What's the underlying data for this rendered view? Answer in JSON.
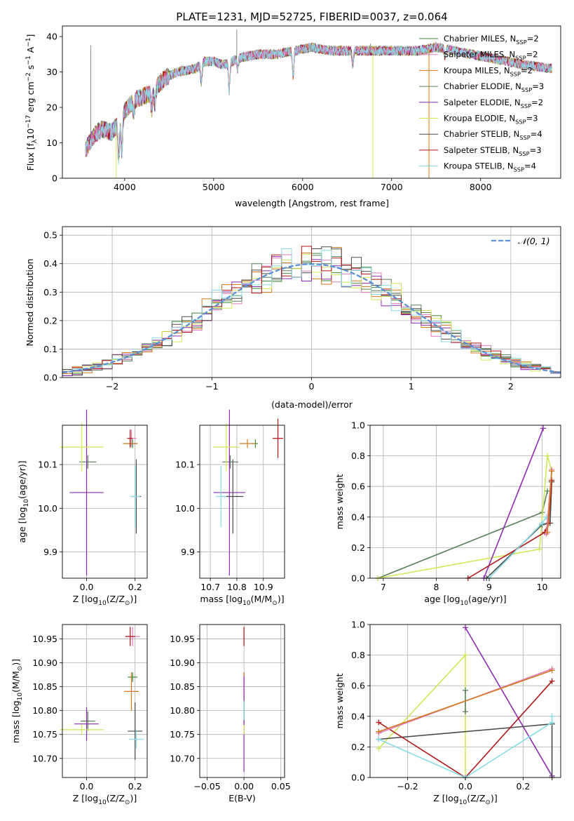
{
  "figure": {
    "title": "PLATE=1231, MJD=52725, FIBERID=0037, z=0.064"
  },
  "models": [
    {
      "name": "Chabrier MILES, N",
      "sub": "SSP",
      "tail": "=2",
      "color": "#3a8a3a"
    },
    {
      "name": "Salpeter MILES, N",
      "sub": "SSP",
      "tail": "=2",
      "color": "#e27cc0"
    },
    {
      "name": "Kroupa MILES, N",
      "sub": "SSP",
      "tail": "=2",
      "color": "#d2791e"
    },
    {
      "name": "Chabrier ELODIE, N",
      "sub": "SSP",
      "tail": "=3",
      "color": "#5a7f5a"
    },
    {
      "name": "Salpeter ELODIE, N",
      "sub": "SSP",
      "tail": "=2",
      "color": "#8e2bb0"
    },
    {
      "name": "Kroupa ELODIE, N",
      "sub": "SSP",
      "tail": "=3",
      "color": "#cfe85a"
    },
    {
      "name": "Chabrier STELIB, N",
      "sub": "SSP",
      "tail": "=4",
      "color": "#4a4a4a"
    },
    {
      "name": "Salpeter STELIB, N",
      "sub": "SSP",
      "tail": "=3",
      "color": "#b01515"
    },
    {
      "name": "Kroupa STELIB, N",
      "sub": "SSP",
      "tail": "=4",
      "color": "#88dce6"
    }
  ],
  "chart_data": [
    {
      "id": "spectrum",
      "type": "line",
      "xlabel": "wavelength [Angstrom, rest frame]",
      "ylabel": "Flux [f",
      "ylabel_sub": "λ",
      "ylabel_mid": "10",
      "ylabel_sup1": "−17",
      "ylabel_mid2": " erg cm",
      "ylabel_sup2": "−2",
      "ylabel_mid3": " s",
      "ylabel_sup3": "−1",
      "ylabel_mid4": " A",
      "ylabel_sup4": "−1",
      "ylabel_end": "]",
      "xlim": [
        3300,
        8900
      ],
      "ylim": [
        0,
        43
      ],
      "xticks": [
        "4000",
        "5000",
        "6000",
        "7000",
        "8000"
      ],
      "xtick_values": [
        4000,
        5000,
        6000,
        7000,
        8000
      ],
      "yticks": [
        "0",
        "10",
        "20",
        "30",
        "40"
      ],
      "ytick_values": [
        0,
        10,
        20,
        30,
        40
      ],
      "continuum": [
        [
          3560,
          8
        ],
        [
          3650,
          12
        ],
        [
          3750,
          14
        ],
        [
          3850,
          13
        ],
        [
          3950,
          16
        ],
        [
          4000,
          19
        ],
        [
          4100,
          22
        ],
        [
          4200,
          23
        ],
        [
          4300,
          24
        ],
        [
          4400,
          27
        ],
        [
          4500,
          29
        ],
        [
          4600,
          30
        ],
        [
          4800,
          31
        ],
        [
          4900,
          33
        ],
        [
          5000,
          33
        ],
        [
          5100,
          32
        ],
        [
          5200,
          33
        ],
        [
          5300,
          34
        ],
        [
          5500,
          35
        ],
        [
          5700,
          35
        ],
        [
          5900,
          36
        ],
        [
          6100,
          37
        ],
        [
          6300,
          36
        ],
        [
          6500,
          36
        ],
        [
          6700,
          36
        ],
        [
          6900,
          36
        ],
        [
          7100,
          36
        ],
        [
          7300,
          36
        ],
        [
          7500,
          37
        ],
        [
          7700,
          36
        ],
        [
          7900,
          35
        ],
        [
          8100,
          34
        ],
        [
          8300,
          33
        ],
        [
          8500,
          32
        ],
        [
          8800,
          31
        ]
      ],
      "absorption_lines": [
        [
          3934,
          10
        ],
        [
          3968,
          9
        ],
        [
          4101,
          4
        ],
        [
          4304,
          5
        ],
        [
          4340,
          4
        ],
        [
          4861,
          5
        ],
        [
          5175,
          8
        ],
        [
          5270,
          3
        ],
        [
          5893,
          7
        ],
        [
          6563,
          4
        ],
        [
          7600,
          2
        ]
      ],
      "spikes_up": [
        [
          3620,
          37.5
        ],
        [
          5260,
          42
        ],
        [
          6760,
          38
        ]
      ],
      "spikes_down": [
        [
          3905,
          0
        ],
        [
          6790,
          0
        ],
        [
          7420,
          0
        ]
      ]
    },
    {
      "id": "residuals",
      "type": "histogram",
      "xlabel": "(data-model)/error",
      "ylabel": "Normed distribution",
      "xlim": [
        -2.5,
        2.5
      ],
      "ylim": [
        0,
        0.53
      ],
      "xticks": [
        "−2",
        "−1",
        "0",
        "1",
        "2"
      ],
      "xtick_values": [
        -2,
        -1,
        0,
        1,
        2
      ],
      "yticks": [
        "0.0",
        "0.1",
        "0.2",
        "0.3",
        "0.4",
        "0.5"
      ],
      "ytick_values": [
        0,
        0.1,
        0.2,
        0.3,
        0.4,
        0.5
      ],
      "legend": "𝒩(0, 1)",
      "legend_color": "#5b8fd6",
      "bin_width": 0.1,
      "bin_start": -2.5
    },
    {
      "id": "age-vs-Z",
      "type": "scatter",
      "xlabel": "Z [log",
      "xlabel_sub": "10",
      "xlabel_rest": "(Z/Z",
      "xlabel_sub2": "⊙",
      "xlabel_end": ")]",
      "ylabel": "age  [log",
      "ylabel_sub": "10",
      "ylabel_rest": "(age/yr)]",
      "xlim": [
        -0.1,
        0.25
      ],
      "ylim": [
        9.84,
        10.19
      ],
      "xticks": [
        "0.0",
        "0.2"
      ],
      "xtick_values": [
        0,
        0.2
      ],
      "yticks": [
        "9.9",
        "10.0",
        "10.1"
      ],
      "ytick_values": [
        9.9,
        10.0,
        10.1
      ],
      "points": [
        {
          "m": 0,
          "x": 0.19,
          "y": 10.148,
          "xe": 0.02,
          "ye": 0.01
        },
        {
          "m": 1,
          "x": 0.185,
          "y": 10.16,
          "xe": 0.02,
          "ye": 0.02
        },
        {
          "m": 2,
          "x": 0.18,
          "y": 10.148,
          "xe": 0.03,
          "ye": 0.01
        },
        {
          "m": 3,
          "x": 0.005,
          "y": 10.106,
          "xe": 0.035,
          "ye": 0.015
        },
        {
          "m": 4,
          "x": 0.0,
          "y": 10.036,
          "xe": 0.07,
          "ye": 0.19
        },
        {
          "m": 5,
          "x": -0.02,
          "y": 10.14,
          "xe": 0.09,
          "ye": 0.055
        },
        {
          "m": 6,
          "x": 0.205,
          "y": 10.027,
          "xe": 0.02,
          "ye": 0.085
        },
        {
          "m": 7,
          "x": 0.18,
          "y": 10.16,
          "xe": 0.01,
          "ye": 0.02
        },
        {
          "m": 8,
          "x": 0.2,
          "y": 10.027,
          "xe": 0.02,
          "ye": 0.07
        }
      ]
    },
    {
      "id": "age-vs-mass",
      "type": "scatter",
      "xlabel": "mass [log",
      "xlabel_sub": "10",
      "xlabel_rest": "(M/M",
      "xlabel_sub2": "⊙",
      "xlabel_end": ")]",
      "xlim": [
        10.66,
        10.98
      ],
      "ylim": [
        9.84,
        10.19
      ],
      "xticks": [
        "10.7",
        "10.8",
        "10.9"
      ],
      "xtick_values": [
        10.7,
        10.8,
        10.9
      ],
      "yticks": [
        "9.9",
        "10.0",
        "10.1"
      ],
      "ytick_values": [
        9.9,
        10.0,
        10.1
      ],
      "points": [
        {
          "m": 0,
          "x": 10.87,
          "y": 10.148,
          "xe": 0.01,
          "ye": 0.01
        },
        {
          "m": 1,
          "x": 10.955,
          "y": 10.16,
          "xe": 0.01,
          "ye": 0.02
        },
        {
          "m": 2,
          "x": 10.84,
          "y": 10.148,
          "xe": 0.03,
          "ye": 0.01
        },
        {
          "m": 3,
          "x": 10.775,
          "y": 10.106,
          "xe": 0.03,
          "ye": 0.015
        },
        {
          "m": 4,
          "x": 10.772,
          "y": 10.036,
          "xe": 0.06,
          "ye": 0.19
        },
        {
          "m": 5,
          "x": 10.76,
          "y": 10.14,
          "xe": 0.05,
          "ye": 0.055
        },
        {
          "m": 6,
          "x": 10.785,
          "y": 10.027,
          "xe": 0.04,
          "ye": 0.085
        },
        {
          "m": 7,
          "x": 10.955,
          "y": 10.16,
          "xe": 0.02,
          "ye": 0.045
        },
        {
          "m": 8,
          "x": 10.74,
          "y": 10.027,
          "xe": 0.02,
          "ye": 0.07
        }
      ]
    },
    {
      "id": "weight-vs-age",
      "type": "line",
      "xlabel": "age  [log",
      "xlabel_sub": "10",
      "xlabel_rest": "(age/yr)]",
      "ylabel": "mass weight",
      "xlim": [
        6.75,
        10.35
      ],
      "ylim": [
        0,
        1.0
      ],
      "xticks": [
        "7",
        "8",
        "9",
        "10"
      ],
      "xtick_values": [
        7,
        8,
        9,
        10
      ],
      "yticks": [
        "0.0",
        "0.2",
        "0.4",
        "0.6",
        "0.8",
        "1.0"
      ],
      "ytick_values": [
        0,
        0.2,
        0.4,
        0.6,
        0.8,
        1.0
      ],
      "series": [
        {
          "m": 3,
          "x": [
            6.9,
            10.0,
            10.1
          ],
          "y": [
            0.0,
            0.43,
            0.57
          ]
        },
        {
          "m": 5,
          "x": [
            6.9,
            9.95,
            10.1,
            10.18
          ],
          "y": [
            0.0,
            0.19,
            0.8,
            0.7
          ]
        },
        {
          "m": 4,
          "x": [
            8.9,
            10.02
          ],
          "y": [
            0.0,
            0.98
          ]
        },
        {
          "m": 6,
          "x": [
            8.95,
            10.0,
            10.15,
            10.18
          ],
          "y": [
            0.0,
            0.35,
            0.36,
            0.63
          ]
        },
        {
          "m": 7,
          "x": [
            8.6,
            10.05,
            10.12,
            10.18
          ],
          "y": [
            0.0,
            0.3,
            0.36,
            0.64
          ]
        },
        {
          "m": 8,
          "x": [
            9.0,
            10.0,
            10.08
          ],
          "y": [
            0.0,
            0.36,
            0.4
          ]
        },
        {
          "m": 1,
          "x": [
            10.08,
            10.18
          ],
          "y": [
            0.29,
            0.71
          ]
        },
        {
          "m": 2,
          "x": [
            10.1,
            10.18
          ],
          "y": [
            0.3,
            0.7
          ]
        }
      ]
    },
    {
      "id": "mass-vs-Z",
      "type": "scatter",
      "xlabel": "Z [log",
      "xlabel_sub": "10",
      "xlabel_rest": "(Z/Z",
      "xlabel_sub2": "⊙",
      "xlabel_end": ")]",
      "ylabel": "mass [log",
      "ylabel_sub": "10",
      "ylabel_rest": "(M/M",
      "ylabel_sub2": "⊙",
      "ylabel_end": ")]",
      "xlim": [
        -0.1,
        0.25
      ],
      "ylim": [
        10.66,
        10.98
      ],
      "xticks": [
        "0.0",
        "0.2"
      ],
      "xtick_values": [
        0,
        0.2
      ],
      "yticks": [
        "10.70",
        "10.75",
        "10.80",
        "10.85",
        "10.90",
        "10.95"
      ],
      "ytick_values": [
        10.7,
        10.75,
        10.8,
        10.85,
        10.9,
        10.95
      ],
      "points": [
        {
          "m": 0,
          "x": 0.19,
          "y": 10.87,
          "xe": 0.02,
          "ye": 0.01
        },
        {
          "m": 1,
          "x": 0.19,
          "y": 10.955,
          "xe": 0.03,
          "ye": 0.02
        },
        {
          "m": 2,
          "x": 0.185,
          "y": 10.84,
          "xe": 0.03,
          "ye": 0.04
        },
        {
          "m": 3,
          "x": 0.005,
          "y": 10.778,
          "xe": 0.03,
          "ye": 0.02
        },
        {
          "m": 4,
          "x": 0.0,
          "y": 10.772,
          "xe": 0.05,
          "ye": 0.035
        },
        {
          "m": 5,
          "x": -0.02,
          "y": 10.76,
          "xe": 0.09,
          "ye": 0.01
        },
        {
          "m": 6,
          "x": 0.2,
          "y": 10.757,
          "xe": 0.03,
          "ye": 0.06
        },
        {
          "m": 7,
          "x": 0.18,
          "y": 10.955,
          "xe": 0.02,
          "ye": 0.02
        },
        {
          "m": 8,
          "x": 0.205,
          "y": 10.74,
          "xe": 0.03,
          "ye": 0.02
        }
      ]
    },
    {
      "id": "mass-vs-ebv",
      "type": "scatter",
      "xlabel": "E(B-V)",
      "xlim": [
        -0.06,
        0.055
      ],
      "ylim": [
        10.66,
        10.98
      ],
      "xticks": [
        "−0.05",
        "0.00",
        "0.05"
      ],
      "xtick_values": [
        -0.05,
        0,
        0.05
      ],
      "yticks": [
        "10.70",
        "10.75",
        "10.80",
        "10.85",
        "10.90",
        "10.95"
      ],
      "ytick_values": [
        10.7,
        10.75,
        10.8,
        10.85,
        10.9,
        10.95
      ],
      "points": [
        {
          "m": 0,
          "x": 0.0,
          "y": 10.87,
          "xe": 0.0,
          "ye": 0.01
        },
        {
          "m": 1,
          "x": 0.0,
          "y": 10.955,
          "xe": 0.0,
          "ye": 0.02
        },
        {
          "m": 2,
          "x": 0.0,
          "y": 10.84,
          "xe": 0.0,
          "ye": 0.04
        },
        {
          "m": 3,
          "x": 0.0,
          "y": 10.778,
          "xe": 0.0,
          "ye": 0.02
        },
        {
          "m": 4,
          "x": 0.0,
          "y": 10.772,
          "xe": 0.0,
          "ye": 0.1
        },
        {
          "m": 5,
          "x": 0.0,
          "y": 10.76,
          "xe": 0.0,
          "ye": 0.01
        },
        {
          "m": 6,
          "x": 0.0,
          "y": 10.8,
          "xe": 0.0,
          "ye": 0.02
        },
        {
          "m": 7,
          "x": 0.0,
          "y": 10.955,
          "xe": 0.0,
          "ye": 0.02
        },
        {
          "m": 8,
          "x": 0.0,
          "y": 10.8,
          "xe": 0.0,
          "ye": 0.02
        }
      ]
    },
    {
      "id": "weight-vs-Z",
      "type": "line",
      "xlabel": "Z [log",
      "xlabel_sub": "10",
      "xlabel_rest": "(Z/Z",
      "xlabel_sub2": "⊙",
      "xlabel_end": ")]",
      "ylabel": "mass weight",
      "xlim": [
        -0.33,
        0.33
      ],
      "ylim": [
        0,
        1.0
      ],
      "xticks": [
        "−0.2",
        "0.0",
        "0.2"
      ],
      "xtick_values": [
        -0.2,
        0,
        0.2
      ],
      "yticks": [
        "0.0",
        "0.2",
        "0.4",
        "0.6",
        "0.8",
        "1.0"
      ],
      "ytick_values": [
        0,
        0.2,
        0.4,
        0.6,
        0.8,
        1.0
      ],
      "series": [
        {
          "m": 5,
          "x": [
            -0.3,
            0.0,
            0.0
          ],
          "y": [
            0.19,
            0.8,
            0.0
          ]
        },
        {
          "m": 3,
          "x": [
            0.0,
            0.0
          ],
          "y": [
            0.43,
            0.57
          ]
        },
        {
          "m": 4,
          "x": [
            0.0,
            0.3
          ],
          "y": [
            0.98,
            0.01
          ]
        },
        {
          "m": 6,
          "x": [
            -0.3,
            0.3,
            0.3
          ],
          "y": [
            0.25,
            0.35,
            0.0
          ]
        },
        {
          "m": 7,
          "x": [
            -0.3,
            0.0,
            0.3
          ],
          "y": [
            0.36,
            0.0,
            0.63
          ]
        },
        {
          "m": 8,
          "x": [
            -0.3,
            0.0,
            0.3,
            0.3
          ],
          "y": [
            0.25,
            0.0,
            0.36,
            0.4
          ]
        },
        {
          "m": 1,
          "x": [
            -0.3,
            0.3
          ],
          "y": [
            0.29,
            0.71
          ]
        },
        {
          "m": 2,
          "x": [
            -0.3,
            0.3
          ],
          "y": [
            0.3,
            0.7
          ]
        }
      ]
    }
  ]
}
